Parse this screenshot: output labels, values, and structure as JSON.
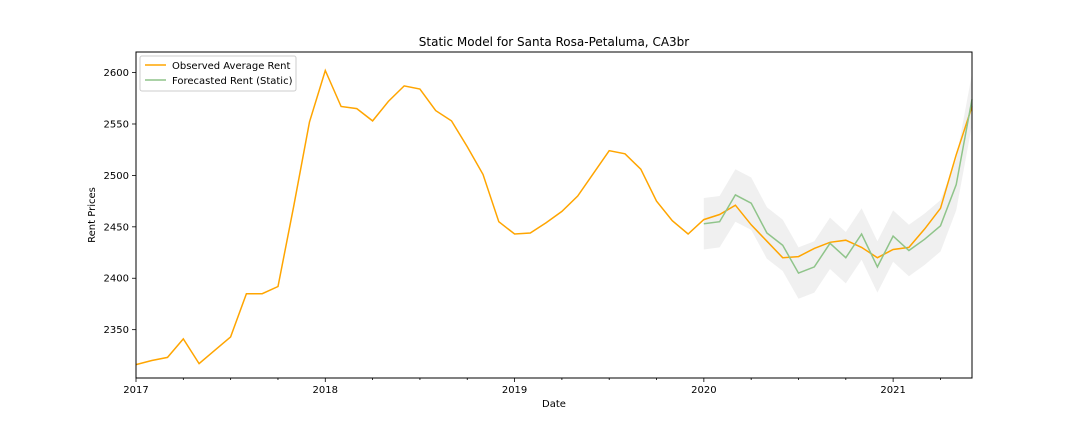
{
  "chart_data": {
    "type": "line",
    "title": "Static Model for Santa Rosa-Petaluma, CA3br",
    "xlabel": "Date",
    "ylabel": "Rent Prices",
    "x_ticks": [
      "2017",
      "2018",
      "2019",
      "2020",
      "2021"
    ],
    "y_ticks": [
      2350,
      2400,
      2450,
      2500,
      2550,
      2600
    ],
    "xlim": [
      "2017-01",
      "2021-06"
    ],
    "ylim": [
      2303,
      2620
    ],
    "grid": false,
    "legend_position": "top-left",
    "colors": {
      "observed": "#ffa500",
      "forecast": "#8fc48a",
      "band": "#d3d3d3"
    },
    "series": [
      {
        "name": "Observed Average Rent",
        "x": [
          "2017-01",
          "2017-02",
          "2017-03",
          "2017-04",
          "2017-05",
          "2017-06",
          "2017-07",
          "2017-08",
          "2017-09",
          "2017-10",
          "2017-11",
          "2017-12",
          "2018-01",
          "2018-02",
          "2018-03",
          "2018-04",
          "2018-05",
          "2018-06",
          "2018-07",
          "2018-08",
          "2018-09",
          "2018-10",
          "2018-11",
          "2018-12",
          "2019-01",
          "2019-02",
          "2019-03",
          "2019-04",
          "2019-05",
          "2019-06",
          "2019-07",
          "2019-08",
          "2019-09",
          "2019-10",
          "2019-11",
          "2019-12",
          "2020-01",
          "2020-02",
          "2020-03",
          "2020-04",
          "2020-05",
          "2020-06",
          "2020-07",
          "2020-08",
          "2020-09",
          "2020-10",
          "2020-11",
          "2020-12",
          "2021-01",
          "2021-02",
          "2021-03",
          "2021-04",
          "2021-05",
          "2021-06"
        ],
        "values": [
          2316,
          2320,
          2323,
          2341,
          2317,
          2330,
          2343,
          2385,
          2385,
          2392,
          2470,
          2552,
          2602,
          2567,
          2565,
          2553,
          2572,
          2587,
          2584,
          2563,
          2553,
          2528,
          2501,
          2455,
          2443,
          2444,
          2454,
          2465,
          2480,
          2502,
          2524,
          2521,
          2506,
          2475,
          2456,
          2443,
          2457,
          2462,
          2471,
          2452,
          2436,
          2420,
          2421,
          2429,
          2435,
          2437,
          2430,
          2420,
          2428,
          2430,
          2448,
          2468,
          2520,
          2567
        ]
      },
      {
        "name": "Forecasted Rent (Static)",
        "x": [
          "2020-01",
          "2020-02",
          "2020-03",
          "2020-04",
          "2020-05",
          "2020-06",
          "2020-07",
          "2020-08",
          "2020-09",
          "2020-10",
          "2020-11",
          "2020-12",
          "2021-01",
          "2021-02",
          "2021-03",
          "2021-04",
          "2021-05",
          "2021-06"
        ],
        "values": [
          2453,
          2455,
          2481,
          2473,
          2444,
          2432,
          2405,
          2411,
          2434,
          2420,
          2443,
          2411,
          2441,
          2427,
          2438,
          2451,
          2491,
          2574
        ],
        "ci_lower": [
          2428,
          2430,
          2455,
          2447,
          2419,
          2407,
          2380,
          2386,
          2409,
          2395,
          2418,
          2386,
          2416,
          2402,
          2413,
          2426,
          2466,
          2549
        ],
        "ci_upper": [
          2478,
          2480,
          2506,
          2498,
          2469,
          2457,
          2430,
          2436,
          2459,
          2445,
          2468,
          2436,
          2466,
          2452,
          2463,
          2476,
          2516,
          2599
        ]
      }
    ]
  }
}
